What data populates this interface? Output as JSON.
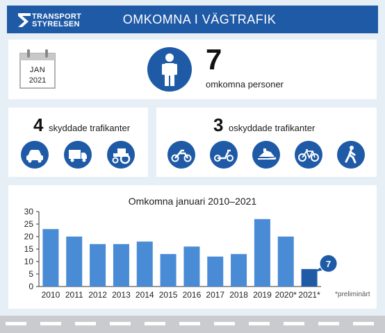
{
  "header": {
    "logo_line1": "TRANSPORT",
    "logo_line2": "STYRELSEN",
    "title": "OMKOMNA I VÄGTRAFIK"
  },
  "calendar": {
    "month": "JAN",
    "year": "2021"
  },
  "fatalities": {
    "count": "7",
    "label": "omkomna personer"
  },
  "protected": {
    "count": "4",
    "label": "skyddade trafikanter",
    "icons": [
      "car-icon",
      "truck-icon",
      "tractor-icon"
    ]
  },
  "unprotected": {
    "count": "3",
    "label": "oskyddade trafikanter",
    "icons": [
      "motorcycle-icon",
      "moped-icon",
      "snowmobile-icon",
      "bicycle-icon",
      "pedestrian-icon"
    ]
  },
  "colors": {
    "brand": "#1f5aa6",
    "bar": "#4a8bd6",
    "bar_highlight": "#1f5aa6"
  },
  "chart_data": {
    "type": "bar",
    "title": "Omkomna januari 2010–2021",
    "categories": [
      "2010",
      "2011",
      "2012",
      "2013",
      "2014",
      "2015",
      "2016",
      "2017",
      "2018",
      "2019",
      "2020*",
      "2021*"
    ],
    "values": [
      23,
      20,
      17,
      17,
      18,
      13,
      16,
      12,
      13,
      27,
      20,
      7
    ],
    "ylim": [
      0,
      30
    ],
    "yticks": [
      0,
      5,
      10,
      15,
      20,
      25,
      30
    ],
    "highlight_index": 11,
    "callout": "7",
    "footnote": "*preliminärt"
  }
}
